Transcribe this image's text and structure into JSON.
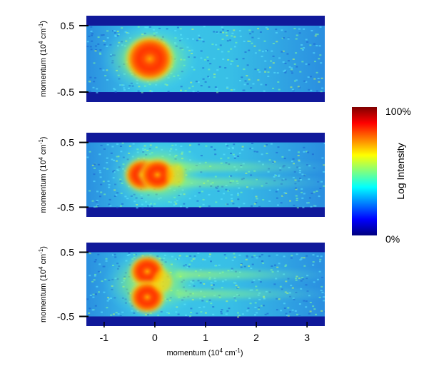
{
  "chart_data": {
    "type": "heatmap",
    "panels": [
      {
        "ylabel": "momentum (10",
        "ylabel_sup": "4",
        "ylabel_unit": " cm",
        "ylabel_unit_sup": "-1",
        "ylabel_close": ")",
        "yticks": [
          0.5,
          -0.5
        ],
        "ytick_labels": [
          "0.5",
          "-0.5"
        ],
        "ylim": [
          -0.65,
          0.65
        ],
        "band_y": [
          -0.5,
          0.5
        ],
        "blobs": [
          {
            "x": -0.1,
            "y": 0.0,
            "level": 1.0
          }
        ],
        "streaks": []
      },
      {
        "ylabel": "momentum (10",
        "ylabel_sup": "4",
        "ylabel_unit": " cm",
        "ylabel_unit_sup": "-1",
        "ylabel_close": ")",
        "yticks": [
          0.5,
          -0.5
        ],
        "ytick_labels": [
          "0.5",
          "-0.5"
        ],
        "ylim": [
          -0.65,
          0.65
        ],
        "band_y": [
          -0.5,
          0.5
        ],
        "blobs": [
          {
            "x": -0.25,
            "y": 0.0,
            "level": 1.0
          },
          {
            "x": 0.05,
            "y": 0.0,
            "level": 1.0
          },
          {
            "x": 0.4,
            "y": 0.0,
            "level": 0.55
          }
        ],
        "streaks": [
          {
            "y": 0.12,
            "level": 0.55
          },
          {
            "y": -0.12,
            "level": 0.55
          }
        ]
      },
      {
        "ylabel": "momentum (10",
        "ylabel_sup": "4",
        "ylabel_unit": " cm",
        "ylabel_unit_sup": "-1",
        "ylabel_close": ")",
        "yticks": [
          0.5,
          -0.5
        ],
        "ytick_labels": [
          "0.5",
          "-0.5"
        ],
        "ylim": [
          -0.65,
          0.65
        ],
        "band_y": [
          -0.5,
          0.5
        ],
        "blobs": [
          {
            "x": -0.15,
            "y": 0.2,
            "level": 1.0
          },
          {
            "x": -0.15,
            "y": -0.2,
            "level": 1.0
          },
          {
            "x": 0.15,
            "y": 0.05,
            "level": 0.6
          }
        ],
        "streaks": [
          {
            "y": 0.15,
            "level": 0.65
          },
          {
            "y": -0.15,
            "level": 0.6
          }
        ]
      }
    ],
    "xlabel": "momentum (10",
    "xlabel_sup": "4",
    "xlabel_unit": " cm",
    "xlabel_unit_sup": "-1",
    "xlabel_close": ")",
    "xticks": [
      -1,
      0,
      1,
      2,
      3
    ],
    "xtick_labels": [
      "-1",
      "0",
      "1",
      "2",
      "3"
    ],
    "xlim": [
      -1.35,
      3.35
    ],
    "colorbar": {
      "label": "Log Intensity",
      "max_label": "100%",
      "min_label": "0%",
      "colors": [
        "#00007f",
        "#0000ff",
        "#007fff",
        "#00ffff",
        "#7fff7f",
        "#ffff00",
        "#ff7f00",
        "#ff0000",
        "#7f0000"
      ]
    }
  }
}
